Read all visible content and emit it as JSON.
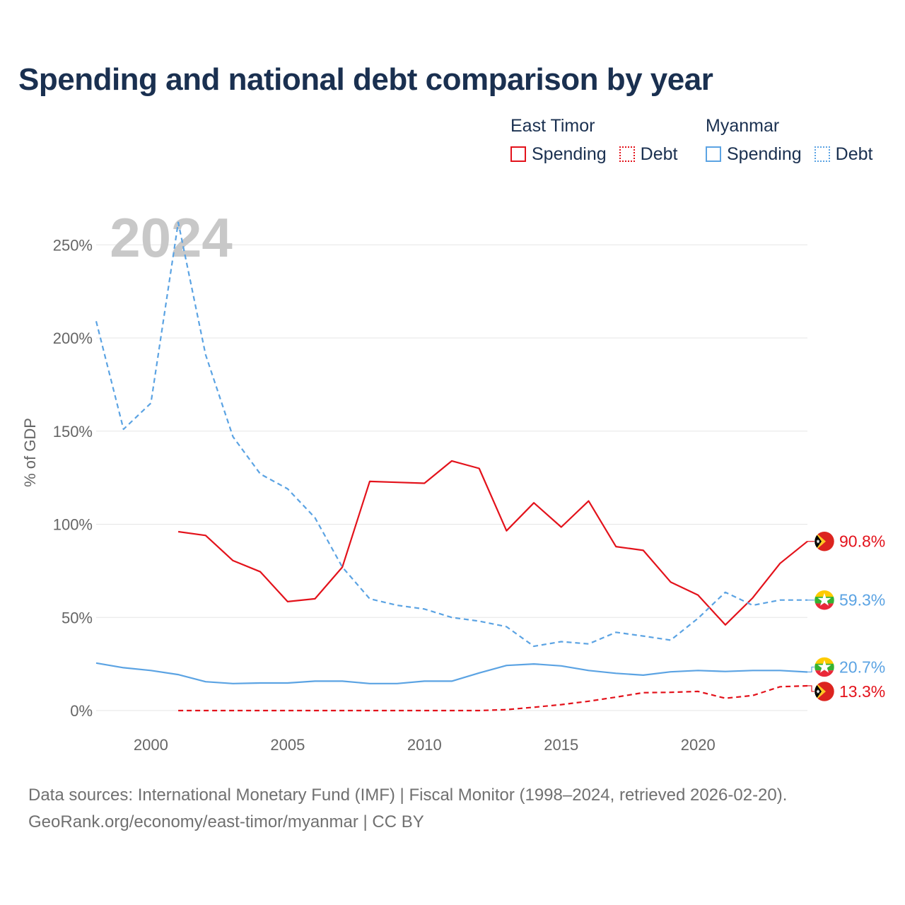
{
  "title": "Spending and national debt comparison by year",
  "legend": {
    "east_timor": {
      "title": "East Timor",
      "spending_label": "Spending",
      "debt_label": "Debt"
    },
    "myanmar": {
      "title": "Myanmar",
      "spending_label": "Spending",
      "debt_label": "Debt"
    }
  },
  "colors": {
    "east_timor": "#e3121b",
    "myanmar": "#5ba3e3",
    "title": "#1a3050",
    "grid": "#e6e6e6",
    "axis_text": "#666666",
    "year_watermark": "#c8c8c8"
  },
  "icons": {
    "east_timor_flag": "east-timor-flag-icon",
    "myanmar_flag": "myanmar-flag-icon"
  },
  "footer": {
    "line1": "Data sources: International Monetary Fund (IMF) | Fiscal Monitor (1998–2024, retrieved 2026-02-20).",
    "line2": "GeoRank.org/economy/east-timor/myanmar | CC BY"
  },
  "chart_data": {
    "type": "line",
    "title": "Spending and national debt comparison by year",
    "year_label": "2024",
    "xlabel": "",
    "ylabel": "% of GDP",
    "xlim": [
      1998,
      2024
    ],
    "ylim": [
      -10,
      265
    ],
    "x_ticks": [
      2000,
      2005,
      2010,
      2015,
      2020
    ],
    "x_tick_labels": [
      "2000",
      "2005",
      "2010",
      "2015",
      "2020"
    ],
    "y_ticks": [
      0,
      50,
      100,
      150,
      200,
      250
    ],
    "y_tick_labels": [
      "0%",
      "50%",
      "100%",
      "150%",
      "200%",
      "250%"
    ],
    "grid": true,
    "legend_position": "top-right",
    "x": [
      1998,
      1999,
      2000,
      2001,
      2002,
      2003,
      2004,
      2005,
      2006,
      2007,
      2008,
      2009,
      2010,
      2011,
      2012,
      2013,
      2014,
      2015,
      2016,
      2017,
      2018,
      2019,
      2020,
      2021,
      2022,
      2023,
      2024
    ],
    "series": [
      {
        "name": "East Timor Spending",
        "country": "east_timor",
        "style": "solid",
        "values": [
          null,
          null,
          null,
          96,
          94,
          80.5,
          74.5,
          58.5,
          60,
          77,
          123,
          122.5,
          122,
          134,
          130,
          96.5,
          111.5,
          98.5,
          112.5,
          88,
          86,
          69,
          62,
          46,
          60.5,
          79,
          90.8
        ],
        "end_label": "90.8%"
      },
      {
        "name": "East Timor Debt",
        "country": "east_timor",
        "style": "dashed",
        "values": [
          null,
          null,
          null,
          0,
          0,
          0,
          0,
          0,
          0,
          0,
          0,
          0,
          0,
          0,
          0,
          0.5,
          1.8,
          3.2,
          5,
          7.2,
          9.6,
          9.8,
          10.3,
          6.6,
          8.1,
          12.8,
          13.3
        ],
        "end_label": "13.3%"
      },
      {
        "name": "Myanmar Spending",
        "country": "myanmar",
        "style": "solid",
        "values": [
          25.5,
          23,
          21.5,
          19.3,
          15.5,
          14.5,
          14.8,
          14.8,
          15.8,
          15.8,
          14.5,
          14.5,
          15.8,
          15.8,
          20.2,
          24.2,
          25,
          24,
          21.5,
          20,
          19,
          20.8,
          21.5,
          21,
          21.5,
          21.5,
          20.7
        ],
        "end_label": "20.7%"
      },
      {
        "name": "Myanmar Debt",
        "country": "myanmar",
        "style": "dashed",
        "values": [
          209,
          151,
          165,
          262,
          191,
          147,
          127,
          119,
          103.5,
          77,
          60,
          56.5,
          54.5,
          50,
          48,
          45,
          34.5,
          37,
          35.8,
          42,
          40,
          37.8,
          49.5,
          63.5,
          56.5,
          59.3,
          59.3
        ],
        "end_label": "59.3%"
      }
    ]
  }
}
